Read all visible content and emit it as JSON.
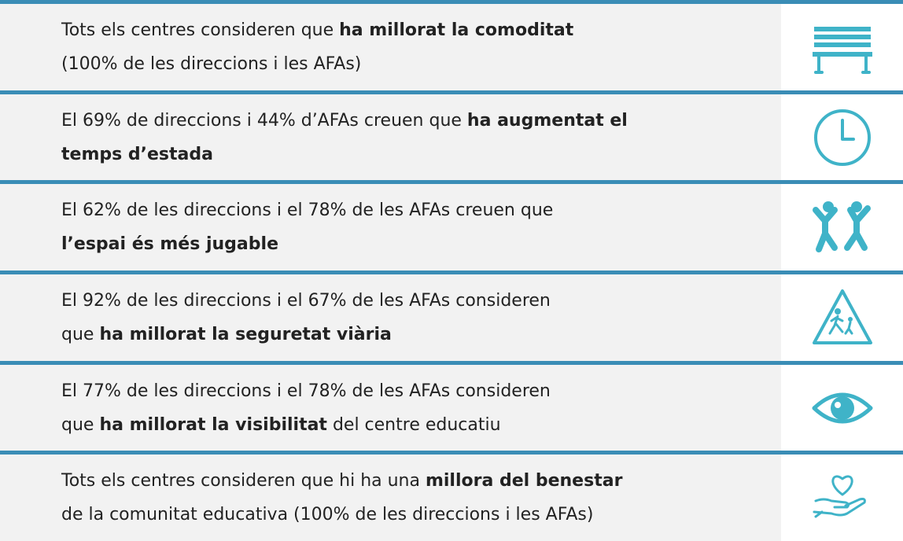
{
  "rows": [
    {
      "lines": [
        [
          {
            "text": "Tots els centres consideren que ",
            "bold": false
          },
          {
            "text": "ha millorat la comoditat",
            "bold": true
          }
        ],
        [
          {
            "text": "(100% de les direccions i les AFAs)",
            "bold": false
          }
        ]
      ]
    },
    {
      "lines": [
        [
          {
            "text": "El 69% de direccions i 44% d’AFAs creuen que ",
            "bold": false
          },
          {
            "text": "ha augmentat el",
            "bold": true
          }
        ],
        [
          {
            "text": "temps d’estada",
            "bold": true
          }
        ]
      ]
    },
    {
      "lines": [
        [
          {
            "text": "El 62% de les direccions i el 78% de les AFAs creuen que",
            "bold": false
          }
        ],
        [
          {
            "text": "l’espai és més jugable",
            "bold": true
          }
        ]
      ]
    },
    {
      "lines": [
        [
          {
            "text": "El 92% de les direccions i el 67% de les AFAs consideren",
            "bold": false
          }
        ],
        [
          {
            "text": "que ",
            "bold": false
          },
          {
            "text": "ha millorat la seguretat viària",
            "bold": true
          }
        ]
      ]
    },
    {
      "lines": [
        [
          {
            "text": "El 77% de les direccions i el 78% de les AFAs consideren",
            "bold": false
          }
        ],
        [
          {
            "text": "que ",
            "bold": false
          },
          {
            "text": "ha millorat la visibilitat",
            "bold": true
          },
          {
            "text": " del centre educatiu",
            "bold": false
          }
        ]
      ]
    },
    {
      "lines": [
        [
          {
            "text": "Tots els centres consideren que hi ha una ",
            "bold": false
          },
          {
            "text": "millora del benestar",
            "bold": true
          }
        ],
        [
          {
            "text": "de la comunitat educativa (100% de les direccions i les AFAs)",
            "bold": false
          }
        ]
      ]
    }
  ]
}
